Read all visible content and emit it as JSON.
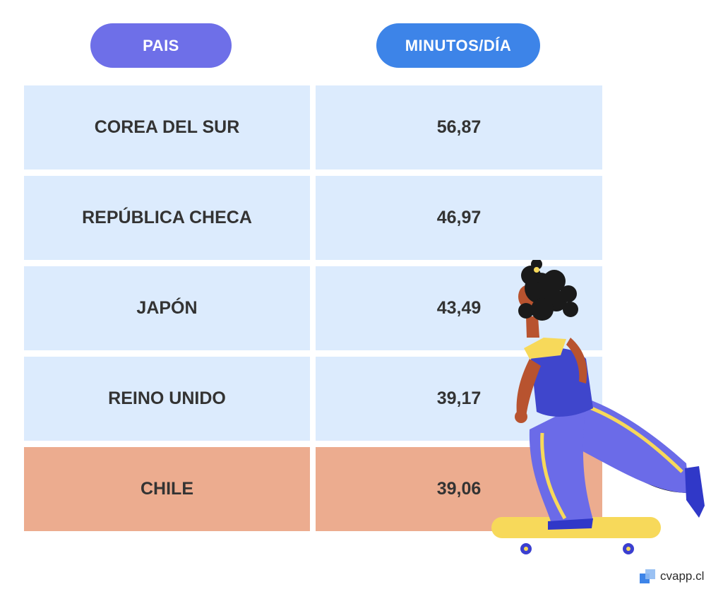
{
  "header": {
    "country_label": "PAIS",
    "minutes_label": "MINUTOS/DÍA"
  },
  "colors": {
    "country_pill": "#6e6fe8",
    "minutes_pill": "#3d84e8",
    "row_default": "#dcebfd",
    "row_highlight": "#ecac8f"
  },
  "chart_data": {
    "type": "table",
    "columns": [
      "PAIS",
      "MINUTOS/DÍA"
    ],
    "rows": [
      {
        "country": "COREA DEL SUR",
        "minutes": "56,87",
        "highlight": false
      },
      {
        "country": "REPÚBLICA CHECA",
        "minutes": "46,97",
        "highlight": false
      },
      {
        "country": "JAPÓN",
        "minutes": "43,49",
        "highlight": false
      },
      {
        "country": "REINO UNIDO",
        "minutes": "39,17",
        "highlight": false
      },
      {
        "country": "CHILE",
        "minutes": "39,06",
        "highlight": true
      }
    ]
  },
  "logo": {
    "text": "cvapp.cl",
    "icon": "cvapp-logo-icon"
  },
  "illustration": {
    "icon": "skateboarder-illustration"
  }
}
